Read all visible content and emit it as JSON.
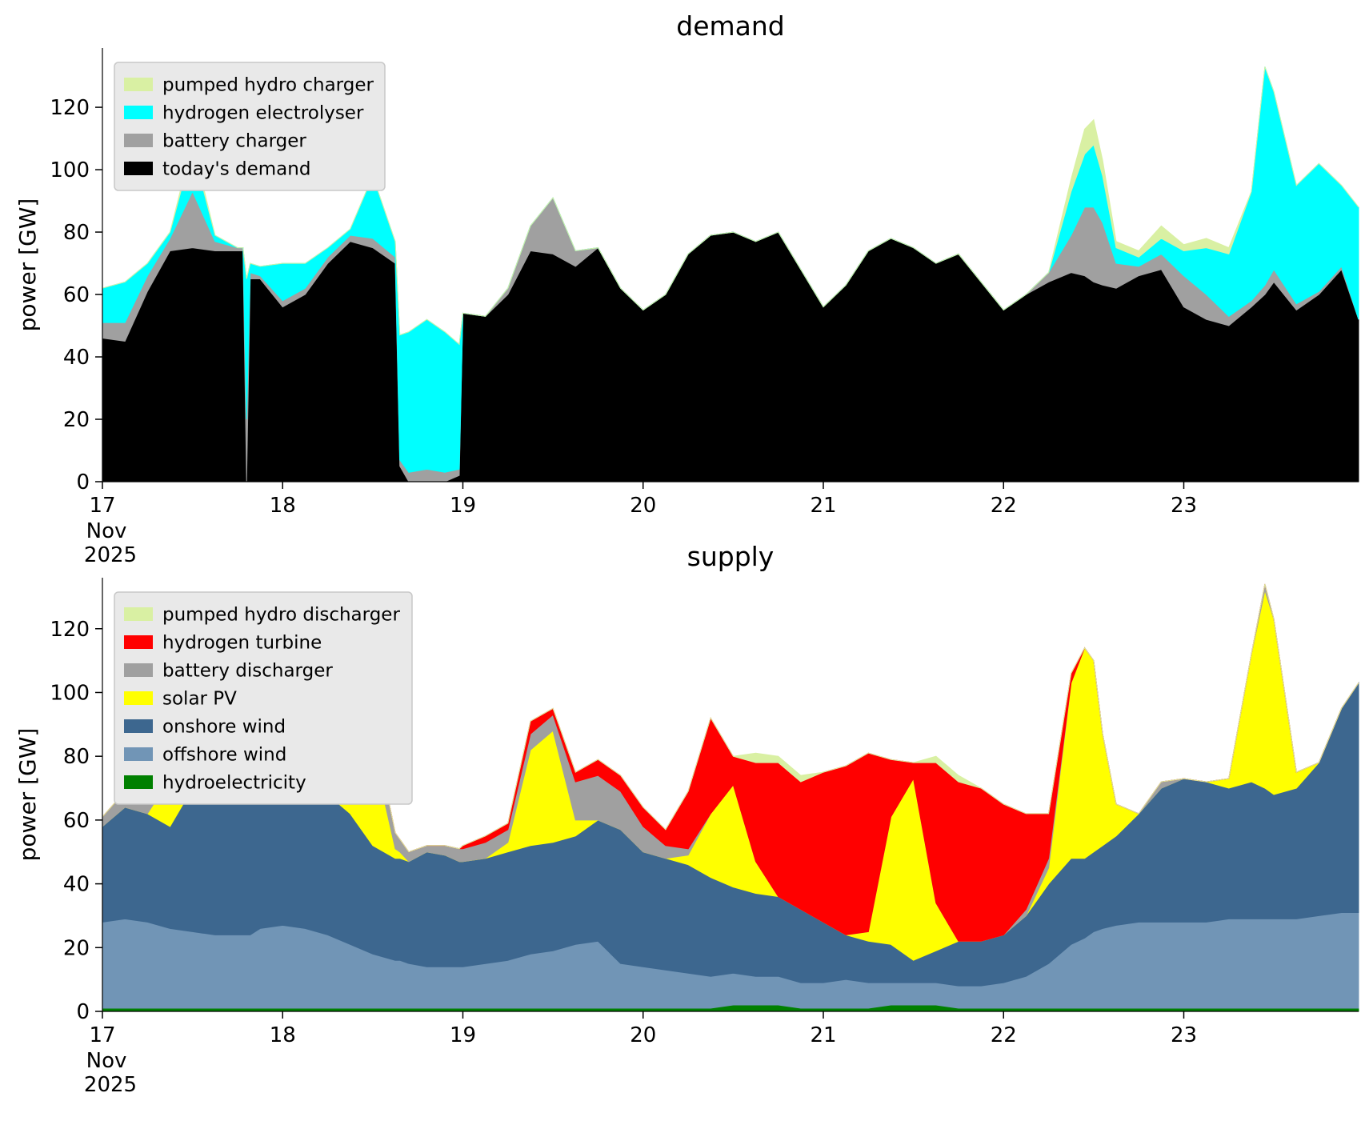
{
  "colors": {
    "background": "#ffffff",
    "legend_background": "#e9e9e9",
    "legend_border": "#c8c8c8",
    "axis_text": "#000000"
  },
  "chart_data": [
    {
      "type": "area",
      "stacked": true,
      "title": "demand",
      "ylabel": "power [GW]",
      "x_axis_month": "Nov",
      "x_axis_year": "2025",
      "x_ticks": [
        17,
        18,
        19,
        20,
        21,
        22,
        23
      ],
      "y_ticks": [
        0,
        20,
        40,
        60,
        80,
        100,
        120
      ],
      "xlim": [
        17,
        23.97
      ],
      "ylim": [
        0,
        139
      ],
      "grid": false,
      "legend_position": "upper-left",
      "x": [
        17,
        17.125,
        17.25,
        17.375,
        17.5,
        17.625,
        17.75,
        17.78,
        17.8,
        17.82,
        17.875,
        18,
        18.125,
        18.25,
        18.375,
        18.5,
        18.625,
        18.65,
        18.7,
        18.8,
        18.9,
        18.98,
        19,
        19.125,
        19.25,
        19.375,
        19.5,
        19.625,
        19.75,
        19.875,
        20,
        20.125,
        20.25,
        20.375,
        20.5,
        20.625,
        20.75,
        20.875,
        21,
        21.125,
        21.25,
        21.375,
        21.5,
        21.625,
        21.75,
        21.875,
        22,
        22.125,
        22.25,
        22.375,
        22.45,
        22.5,
        22.55,
        22.625,
        22.75,
        22.875,
        23,
        23.125,
        23.25,
        23.375,
        23.45,
        23.5,
        23.625,
        23.75,
        23.875,
        23.97
      ],
      "series": [
        {
          "name": "today's demand",
          "color": "#000000",
          "values": [
            46,
            45,
            61,
            74,
            75,
            74,
            74,
            74,
            0,
            65,
            65,
            56,
            60,
            70,
            77,
            75,
            70,
            5,
            0,
            0,
            0,
            2,
            54,
            53,
            60,
            74,
            73,
            69,
            75,
            62,
            55,
            60,
            73,
            79,
            80,
            77,
            80,
            68,
            56,
            63,
            74,
            78,
            75,
            70,
            73,
            64,
            55,
            60,
            64,
            67,
            66,
            64,
            63,
            62,
            66,
            68,
            56,
            52,
            50,
            56,
            60,
            64,
            55,
            60,
            68,
            52
          ]
        },
        {
          "name": "battery charger",
          "color": "#a0a0a0",
          "values": [
            5,
            6,
            5,
            4,
            18,
            3,
            1,
            1,
            20,
            2,
            1,
            2,
            2,
            2,
            2,
            3,
            2,
            2,
            3,
            4,
            3,
            2,
            0,
            0,
            2,
            8,
            18,
            5,
            0,
            0,
            0,
            0,
            0,
            0,
            0,
            0,
            0,
            0,
            0,
            0,
            0,
            0,
            0,
            0,
            0,
            0,
            0,
            0,
            3,
            12,
            22,
            24,
            20,
            8,
            3,
            5,
            10,
            8,
            3,
            2,
            3,
            4,
            2,
            1,
            1,
            0
          ]
        },
        {
          "name": "hydrogen electrolyser",
          "color": "#00ffff",
          "values": [
            11,
            13,
            4,
            2,
            14,
            2,
            0,
            0,
            45,
            3,
            3,
            12,
            8,
            3,
            2,
            20,
            5,
            40,
            45,
            48,
            45,
            40,
            0,
            0,
            0,
            0,
            0,
            0,
            0,
            0,
            0,
            0,
            0,
            0,
            0,
            0,
            0,
            0,
            0,
            0,
            0,
            0,
            0,
            0,
            0,
            0,
            0,
            0,
            0,
            14,
            17,
            20,
            15,
            5,
            3,
            5,
            8,
            15,
            20,
            35,
            70,
            57,
            38,
            41,
            26,
            36
          ]
        },
        {
          "name": "pumped hydro charger",
          "color": "#d9f0a3",
          "values": [
            0,
            0,
            0,
            0,
            2,
            0,
            0,
            0,
            0,
            0,
            0,
            0,
            0,
            0,
            0,
            0,
            0,
            0,
            0,
            0,
            0,
            0,
            0,
            0,
            0,
            0,
            0,
            0,
            0,
            0,
            0,
            0,
            0,
            0,
            0,
            0,
            0,
            0,
            0,
            0,
            0,
            0,
            0,
            0,
            0,
            0,
            0,
            0,
            0,
            4,
            8,
            8,
            5,
            2,
            2,
            4,
            2,
            3,
            2,
            0,
            0,
            0,
            0,
            0,
            0,
            0
          ]
        }
      ]
    },
    {
      "type": "area",
      "stacked": true,
      "title": "supply",
      "ylabel": "power [GW]",
      "x_axis_month": "Nov",
      "x_axis_year": "2025",
      "x_ticks": [
        17,
        18,
        19,
        20,
        21,
        22,
        23
      ],
      "y_ticks": [
        0,
        20,
        40,
        60,
        80,
        100,
        120
      ],
      "xlim": [
        17,
        23.97
      ],
      "ylim": [
        0,
        136
      ],
      "grid": false,
      "legend_position": "upper-left",
      "x": [
        17,
        17.125,
        17.25,
        17.375,
        17.5,
        17.625,
        17.75,
        17.78,
        17.8,
        17.82,
        17.875,
        18,
        18.125,
        18.25,
        18.375,
        18.5,
        18.625,
        18.65,
        18.7,
        18.8,
        18.9,
        18.98,
        19,
        19.125,
        19.25,
        19.375,
        19.5,
        19.625,
        19.75,
        19.875,
        20,
        20.125,
        20.25,
        20.375,
        20.5,
        20.625,
        20.75,
        20.875,
        21,
        21.125,
        21.25,
        21.375,
        21.5,
        21.625,
        21.75,
        21.875,
        22,
        22.125,
        22.25,
        22.375,
        22.45,
        22.5,
        22.55,
        22.625,
        22.75,
        22.875,
        23,
        23.125,
        23.25,
        23.375,
        23.45,
        23.5,
        23.625,
        23.75,
        23.875,
        23.97
      ],
      "series": [
        {
          "name": "hydroelectricity",
          "color": "#008000",
          "values": [
            1,
            1,
            1,
            1,
            1,
            1,
            1,
            1,
            1,
            1,
            1,
            1,
            1,
            1,
            1,
            1,
            1,
            1,
            1,
            1,
            1,
            1,
            1,
            1,
            1,
            1,
            1,
            1,
            1,
            1,
            1,
            1,
            1,
            1,
            2,
            2,
            2,
            1,
            1,
            1,
            1,
            2,
            2,
            2,
            1,
            1,
            1,
            1,
            1,
            1,
            1,
            1,
            1,
            1,
            1,
            1,
            1,
            1,
            1,
            1,
            1,
            1,
            1,
            1,
            1,
            1
          ]
        },
        {
          "name": "offshore wind",
          "color": "#7195b6",
          "values": [
            27,
            28,
            27,
            25,
            24,
            23,
            23,
            23,
            23,
            23,
            25,
            26,
            25,
            23,
            20,
            17,
            15,
            15,
            14,
            13,
            13,
            13,
            13,
            14,
            15,
            17,
            18,
            20,
            21,
            14,
            13,
            12,
            11,
            10,
            10,
            9,
            9,
            8,
            8,
            9,
            8,
            7,
            7,
            7,
            7,
            7,
            8,
            10,
            14,
            20,
            22,
            24,
            25,
            26,
            27,
            27,
            27,
            27,
            28,
            28,
            28,
            28,
            28,
            29,
            30,
            30
          ]
        },
        {
          "name": "onshore wind",
          "color": "#3d678f",
          "values": [
            30,
            35,
            34,
            32,
            45,
            46,
            44,
            44,
            44,
            43,
            41,
            41,
            42,
            44,
            41,
            34,
            32,
            32,
            32,
            36,
            35,
            33,
            33,
            33,
            34,
            34,
            34,
            34,
            38,
            42,
            36,
            35,
            34,
            31,
            27,
            26,
            25,
            23,
            19,
            14,
            13,
            12,
            7,
            10,
            14,
            14,
            15,
            19,
            25,
            27,
            25,
            25,
            26,
            28,
            34,
            42,
            45,
            44,
            41,
            43,
            41,
            39,
            41,
            48,
            64,
            72
          ]
        },
        {
          "name": "solar PV",
          "color": "#ffff00",
          "values": [
            0,
            0,
            0,
            15,
            8,
            0,
            0,
            0,
            0,
            0,
            0,
            0,
            0,
            2,
            20,
            30,
            3,
            2,
            0,
            0,
            0,
            0,
            0,
            0,
            3,
            30,
            35,
            5,
            0,
            0,
            0,
            0,
            3,
            20,
            32,
            10,
            0,
            0,
            0,
            0,
            3,
            40,
            57,
            15,
            0,
            0,
            0,
            0,
            5,
            55,
            66,
            60,
            35,
            10,
            0,
            0,
            0,
            0,
            3,
            40,
            62,
            55,
            5,
            0,
            0,
            0
          ]
        },
        {
          "name": "battery discharger",
          "color": "#a0a0a0",
          "values": [
            3,
            5,
            8,
            3,
            0,
            2,
            3,
            3,
            3,
            2,
            2,
            1,
            1,
            0,
            5,
            8,
            5,
            4,
            3,
            2,
            3,
            4,
            4,
            5,
            4,
            5,
            5,
            12,
            14,
            12,
            8,
            4,
            2,
            0,
            0,
            0,
            0,
            0,
            0,
            0,
            0,
            0,
            0,
            0,
            0,
            0,
            0,
            2,
            3,
            0,
            0,
            0,
            0,
            0,
            0,
            2,
            0,
            0,
            0,
            0,
            2,
            0,
            0,
            0,
            0,
            0
          ]
        },
        {
          "name": "hydrogen turbine",
          "color": "#ff0000",
          "values": [
            0,
            0,
            0,
            0,
            0,
            0,
            0,
            0,
            0,
            0,
            0,
            0,
            0,
            0,
            0,
            0,
            0,
            0,
            0,
            0,
            0,
            0,
            1,
            2,
            2,
            4,
            2,
            3,
            5,
            5,
            6,
            5,
            18,
            30,
            9,
            31,
            42,
            40,
            47,
            53,
            56,
            18,
            5,
            44,
            50,
            48,
            41,
            30,
            14,
            3,
            0,
            0,
            0,
            0,
            0,
            0,
            0,
            0,
            0,
            0,
            0,
            0,
            0,
            0,
            0,
            0
          ]
        },
        {
          "name": "pumped hydro discharger",
          "color": "#d9f0a3",
          "values": [
            0,
            0,
            0,
            0,
            0,
            0,
            0,
            0,
            0,
            0,
            0,
            0,
            0,
            0,
            0,
            0,
            0,
            0,
            0,
            0,
            0,
            0,
            0,
            0,
            0,
            0,
            0,
            0,
            0,
            0,
            0,
            0,
            0,
            0,
            0,
            3,
            2,
            2,
            0,
            0,
            0,
            0,
            0,
            2,
            2,
            0,
            0,
            0,
            0,
            0,
            0,
            0,
            0,
            0,
            0,
            0,
            0,
            0,
            0,
            0,
            0,
            0,
            0,
            0,
            0,
            0
          ]
        }
      ]
    }
  ]
}
